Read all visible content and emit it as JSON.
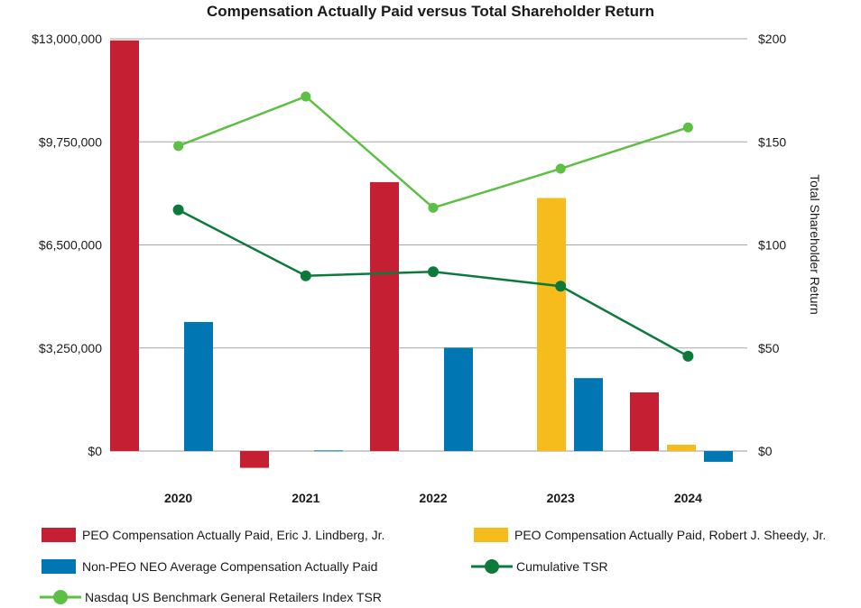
{
  "chart_data": {
    "type": "bar+line",
    "title": "Compensation Actually Paid versus Total Shareholder Return",
    "categories": [
      "2020",
      "2021",
      "2022",
      "2023",
      "2024"
    ],
    "y_left": {
      "range": [
        0,
        13000000
      ],
      "ticks": [
        0,
        3250000,
        6500000,
        9750000,
        13000000
      ],
      "tick_labels": [
        "$0",
        "$3,250,000",
        "$6,500,000",
        "$9,750,000",
        "$13,000,000"
      ]
    },
    "y_right": {
      "label": "Total Shareholder Return",
      "range": [
        0,
        200
      ],
      "ticks": [
        0,
        50,
        100,
        150,
        200
      ],
      "tick_labels": [
        "$0",
        "$50",
        "$100",
        "$150",
        "$200"
      ]
    },
    "bar_series": [
      {
        "name": "PEO Compensation Actually Paid, Eric J. Lindberg, Jr.",
        "color": "#C41F33",
        "values": [
          12950000,
          -530000,
          8480000,
          null,
          1850000
        ]
      },
      {
        "name": "PEO Compensation Actually Paid, Robert J. Sheedy, Jr.",
        "color": "#F5BC1B",
        "values": [
          null,
          null,
          null,
          7980000,
          200000
        ]
      },
      {
        "name": "Non-PEO NEO Average Compensation Actually Paid",
        "color": "#0077B2",
        "values": [
          4070000,
          20000,
          3260000,
          2300000,
          -340000
        ]
      }
    ],
    "line_series": [
      {
        "name": "Cumulative TSR",
        "color": "#0D7A3C",
        "values": [
          117,
          85,
          87,
          80,
          46
        ]
      },
      {
        "name": "Nasdaq US Benchmark General Retailers Index TSR",
        "color": "#5DBF44",
        "values": [
          148,
          172,
          118,
          137,
          157
        ]
      }
    ],
    "grid": true,
    "legend_position": "bottom"
  }
}
